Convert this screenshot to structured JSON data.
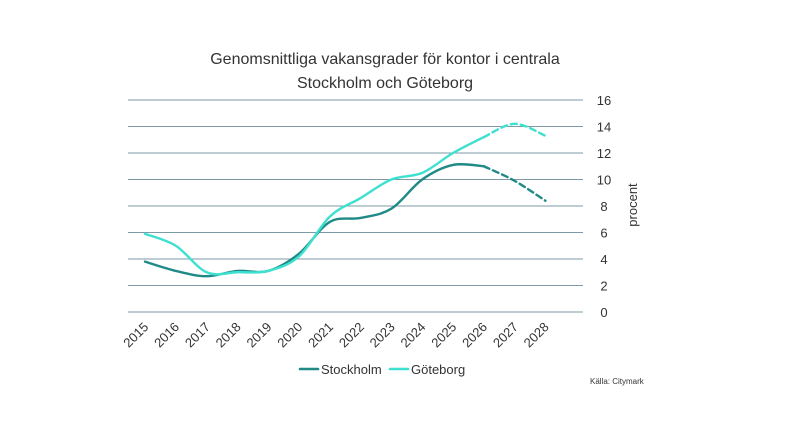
{
  "chart_data": {
    "type": "line",
    "title_lines": [
      "Genomsnittliga vakansgrader för kontor i centrala",
      "Stockholm och Göteborg"
    ],
    "xlabel": "",
    "ylabel": "procent",
    "x": [
      2015,
      2016,
      2017,
      2018,
      2019,
      2020,
      2021,
      2022,
      2023,
      2024,
      2025,
      2026,
      2027,
      2028
    ],
    "ylim": [
      0,
      16
    ],
    "yticks": [
      0,
      2,
      4,
      6,
      8,
      10,
      12,
      14,
      16
    ],
    "grid": true,
    "y_axis_side": "right",
    "legend_placement": "bottom",
    "forecast_from": 2026,
    "series": [
      {
        "name": "Stockholm",
        "color": "#1f8a86",
        "values": [
          3.8,
          3.1,
          2.7,
          3.1,
          3.1,
          4.4,
          6.8,
          7.1,
          7.8,
          10.0,
          11.1,
          11.0,
          9.9,
          8.4
        ]
      },
      {
        "name": "Göteborg",
        "color": "#3ee0cf",
        "values": [
          5.9,
          5.0,
          3.0,
          3.0,
          3.1,
          4.2,
          7.2,
          8.6,
          10.0,
          10.5,
          12.0,
          13.2,
          14.2,
          13.3
        ]
      }
    ],
    "source_note": "Källa: Citymark"
  }
}
